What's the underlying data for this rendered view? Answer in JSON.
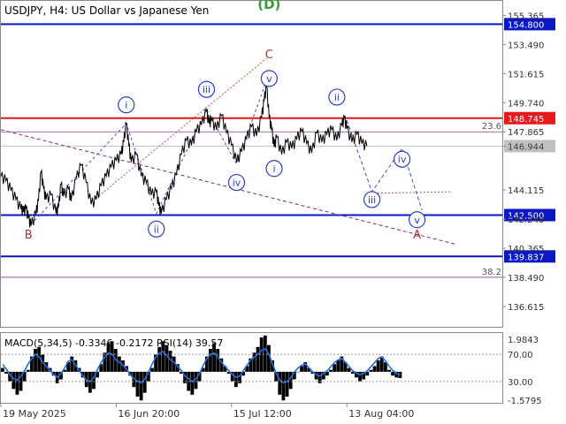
{
  "header": {
    "symbol_line": "USDJPY, H4:  US Dollar vs Japanese Yen"
  },
  "chart_data": {
    "type": "line",
    "symbol": "USDJPY",
    "timeframe": "H4",
    "description": "US Dollar vs Japanese Yen",
    "x_labels": [
      "19 May 2025",
      "16 Jun 20:00",
      "15 Jul 12:00",
      "13 Aug 04:00"
    ],
    "price_ticks": [
      "155.365",
      "153.490",
      "151.615",
      "149.740",
      "147.865",
      "146.944",
      "144.115",
      "142.240",
      "140.365",
      "138.490",
      "136.615"
    ],
    "ylim": [
      135.3,
      156.3
    ],
    "close_series": [
      [
        0.0,
        145.0
      ],
      [
        0.01,
        144.7
      ],
      [
        0.02,
        144.1
      ],
      [
        0.03,
        143.5
      ],
      [
        0.04,
        142.9
      ],
      [
        0.045,
        142.7
      ],
      [
        0.05,
        142.9
      ],
      [
        0.055,
        142.3
      ],
      [
        0.06,
        141.8
      ],
      [
        0.07,
        142.6
      ],
      [
        0.075,
        143.4
      ],
      [
        0.08,
        145.3
      ],
      [
        0.085,
        144.2
      ],
      [
        0.09,
        143.5
      ],
      [
        0.1,
        143.8
      ],
      [
        0.11,
        142.6
      ],
      [
        0.115,
        143.0
      ],
      [
        0.12,
        144.5
      ],
      [
        0.125,
        143.7
      ],
      [
        0.135,
        144.2
      ],
      [
        0.14,
        143.4
      ],
      [
        0.15,
        144.8
      ],
      [
        0.16,
        145.7
      ],
      [
        0.17,
        144.6
      ],
      [
        0.18,
        143.2
      ],
      [
        0.19,
        143.5
      ],
      [
        0.2,
        144.4
      ],
      [
        0.21,
        145.0
      ],
      [
        0.22,
        145.6
      ],
      [
        0.23,
        146.0
      ],
      [
        0.24,
        146.4
      ],
      [
        0.245,
        147.2
      ],
      [
        0.25,
        148.4
      ],
      [
        0.255,
        147.0
      ],
      [
        0.26,
        145.9
      ],
      [
        0.27,
        146.4
      ],
      [
        0.28,
        145.0
      ],
      [
        0.29,
        144.6
      ],
      [
        0.3,
        143.8
      ],
      [
        0.31,
        144.0
      ],
      [
        0.315,
        143.1
      ],
      [
        0.32,
        142.6
      ],
      [
        0.33,
        143.5
      ],
      [
        0.34,
        144.2
      ],
      [
        0.35,
        145.1
      ],
      [
        0.36,
        146.4
      ],
      [
        0.37,
        147.3
      ],
      [
        0.38,
        147.0
      ],
      [
        0.39,
        147.9
      ],
      [
        0.4,
        148.3
      ],
      [
        0.41,
        149.2
      ],
      [
        0.415,
        148.4
      ],
      [
        0.42,
        148.6
      ],
      [
        0.43,
        148.0
      ],
      [
        0.44,
        148.9
      ],
      [
        0.45,
        147.8
      ],
      [
        0.46,
        147.0
      ],
      [
        0.47,
        145.9
      ],
      [
        0.48,
        146.6
      ],
      [
        0.49,
        147.4
      ],
      [
        0.5,
        148.2
      ],
      [
        0.51,
        147.6
      ],
      [
        0.52,
        148.8
      ],
      [
        0.525,
        149.9
      ],
      [
        0.53,
        150.8
      ],
      [
        0.535,
        148.8
      ],
      [
        0.54,
        148.0
      ],
      [
        0.545,
        146.9
      ],
      [
        0.55,
        147.5
      ],
      [
        0.56,
        146.4
      ],
      [
        0.57,
        147.2
      ],
      [
        0.58,
        146.8
      ],
      [
        0.59,
        147.4
      ],
      [
        0.6,
        147.9
      ],
      [
        0.61,
        147.1
      ],
      [
        0.62,
        146.5
      ],
      [
        0.63,
        147.8
      ],
      [
        0.64,
        147.2
      ],
      [
        0.65,
        147.7
      ],
      [
        0.66,
        148.0
      ],
      [
        0.67,
        147.3
      ],
      [
        0.68,
        148.3
      ],
      [
        0.685,
        148.7
      ],
      [
        0.69,
        148.1
      ],
      [
        0.7,
        147.2
      ],
      [
        0.71,
        147.7
      ],
      [
        0.72,
        147.1
      ],
      [
        0.73,
        146.944
      ]
    ],
    "levels": [
      {
        "value": 154.8,
        "label": "154.800",
        "color": "#0b18c4",
        "style": "solid",
        "width": "thick"
      },
      {
        "value": 148.745,
        "label": "148.745",
        "color": "#e8191a",
        "style": "solid",
        "width": "thick"
      },
      {
        "value": 146.944,
        "label": "146.944",
        "color": "#c0c0c0",
        "style": "solid",
        "width": "thin"
      },
      {
        "value": 142.5,
        "label": "142.500",
        "color": "#0b18c4",
        "style": "solid",
        "width": "thick"
      },
      {
        "value": 139.837,
        "label": "139.837",
        "color": "#0b18c4",
        "style": "solid",
        "width": "thick"
      }
    ],
    "fibo_levels": [
      {
        "value": 147.865,
        "label": "23.6"
      },
      {
        "value": 138.49,
        "label": "38.2"
      }
    ],
    "trendlines": [
      {
        "from": [
          0.0,
          148.0
        ],
        "to": [
          0.91,
          140.6
        ],
        "color": "#7a2a7a",
        "style": "dashed"
      },
      {
        "from": [
          0.19,
          143.6
        ],
        "to": [
          0.53,
          152.6
        ],
        "color": "#c0504d",
        "style": "dotted"
      },
      {
        "from": [
          0.73,
          143.9
        ],
        "to": [
          0.9,
          144.0
        ],
        "color": "#c0504d",
        "style": "dotted"
      }
    ],
    "wave_path_solid_hint": [
      [
        0.06,
        141.9
      ],
      [
        0.25,
        148.4
      ],
      [
        0.31,
        142.6
      ],
      [
        0.41,
        149.3
      ],
      [
        0.47,
        145.8
      ],
      [
        0.53,
        151.2
      ]
    ],
    "wave_path_dotted_forecast": [
      [
        0.69,
        148.6
      ],
      [
        0.74,
        144.0
      ],
      [
        0.8,
        146.8
      ],
      [
        0.84,
        142.8
      ]
    ],
    "wave_labels": [
      {
        "text": "(D)",
        "x": 0.535,
        "y": 155.8,
        "style": "green"
      },
      {
        "text": "C",
        "x": 0.535,
        "y": 152.6,
        "style": "red"
      },
      {
        "text": "v",
        "x": 0.535,
        "y": 151.3,
        "style": "circle"
      },
      {
        "text": "i",
        "x": 0.25,
        "y": 149.6,
        "style": "circle"
      },
      {
        "text": "iii",
        "x": 0.41,
        "y": 150.6,
        "style": "circle"
      },
      {
        "text": "iv",
        "x": 0.47,
        "y": 144.6,
        "style": "circle"
      },
      {
        "text": "ii",
        "x": 0.31,
        "y": 141.6,
        "style": "circle"
      },
      {
        "text": "B",
        "x": 0.055,
        "y": 141.0,
        "style": "red"
      },
      {
        "text": "i",
        "x": 0.545,
        "y": 145.5,
        "style": "circle"
      },
      {
        "text": "ii",
        "x": 0.67,
        "y": 150.1,
        "style": "circle"
      },
      {
        "text": "iii",
        "x": 0.74,
        "y": 143.5,
        "style": "circle"
      },
      {
        "text": "iv",
        "x": 0.8,
        "y": 146.1,
        "style": "circle"
      },
      {
        "text": "v",
        "x": 0.83,
        "y": 142.2,
        "style": "circle"
      },
      {
        "text": "A",
        "x": 0.83,
        "y": 141.0,
        "style": "red"
      }
    ]
  },
  "indicator": {
    "title": "MACD(5,34,5) -0.3346 -0.2172 RSI(14) 39.57",
    "ticks": [
      "1.9843",
      "70.00",
      "30.00",
      "-1.5795"
    ],
    "macd_hist": [
      0.2,
      -0.1,
      -0.5,
      -0.9,
      -1.2,
      -1.0,
      -0.5,
      0.1,
      0.8,
      1.2,
      1.3,
      0.9,
      0.5,
      0.2,
      -0.2,
      -0.6,
      -0.4,
      0.1,
      0.5,
      0.8,
      0.6,
      0.2,
      -0.3,
      -0.8,
      -1.1,
      -0.9,
      -0.3,
      0.4,
      1.0,
      1.5,
      1.6,
      1.2,
      0.8,
      0.6,
      0.3,
      -0.2,
      -0.8,
      -1.3,
      -1.5,
      -1.1,
      -0.5,
      0.2,
      0.9,
      1.3,
      1.6,
      1.4,
      1.1,
      0.8,
      0.4,
      -0.1,
      -0.6,
      -1.0,
      -1.2,
      -0.9,
      -0.5,
      0.2,
      0.8,
      1.2,
      1.5,
      1.2,
      0.7,
      0.3,
      -0.1,
      -0.5,
      -0.8,
      -0.6,
      -0.2,
      0.3,
      0.7,
      1.0,
      1.3,
      1.8,
      1.9,
      1.4,
      0.6,
      -0.5,
      -1.2,
      -1.5,
      -1.3,
      -0.9,
      -0.4,
      0.0,
      0.3,
      0.5,
      0.2,
      -0.1,
      -0.4,
      -0.6,
      -0.4,
      -0.2,
      0.1,
      0.4,
      0.6,
      0.8,
      0.5,
      0.2,
      -0.1,
      -0.3,
      -0.5,
      -0.4,
      -0.2,
      0.1,
      0.3,
      0.6,
      0.8,
      0.5,
      0.1,
      -0.2,
      -0.3,
      -0.33
    ],
    "rsi_series": [
      55,
      48,
      40,
      34,
      32,
      38,
      46,
      56,
      64,
      70,
      66,
      58,
      52,
      46,
      40,
      36,
      42,
      50,
      60,
      62,
      54,
      46,
      38,
      32,
      30,
      36,
      48,
      58,
      66,
      72,
      70,
      62,
      58,
      54,
      48,
      40,
      34,
      30,
      28,
      34,
      44,
      56,
      66,
      72,
      74,
      68,
      62,
      58,
      52,
      46,
      38,
      34,
      30,
      34,
      42,
      54,
      64,
      70,
      72,
      66,
      58,
      52,
      46,
      40,
      36,
      38,
      46,
      54,
      62,
      66,
      70,
      76,
      78,
      70,
      56,
      42,
      32,
      28,
      30,
      36,
      44,
      50,
      54,
      56,
      50,
      44,
      40,
      38,
      42,
      46,
      52,
      58,
      62,
      64,
      58,
      52,
      46,
      42,
      40,
      42,
      46,
      52,
      58,
      64,
      66,
      60,
      52,
      46,
      42,
      39.57
    ]
  }
}
